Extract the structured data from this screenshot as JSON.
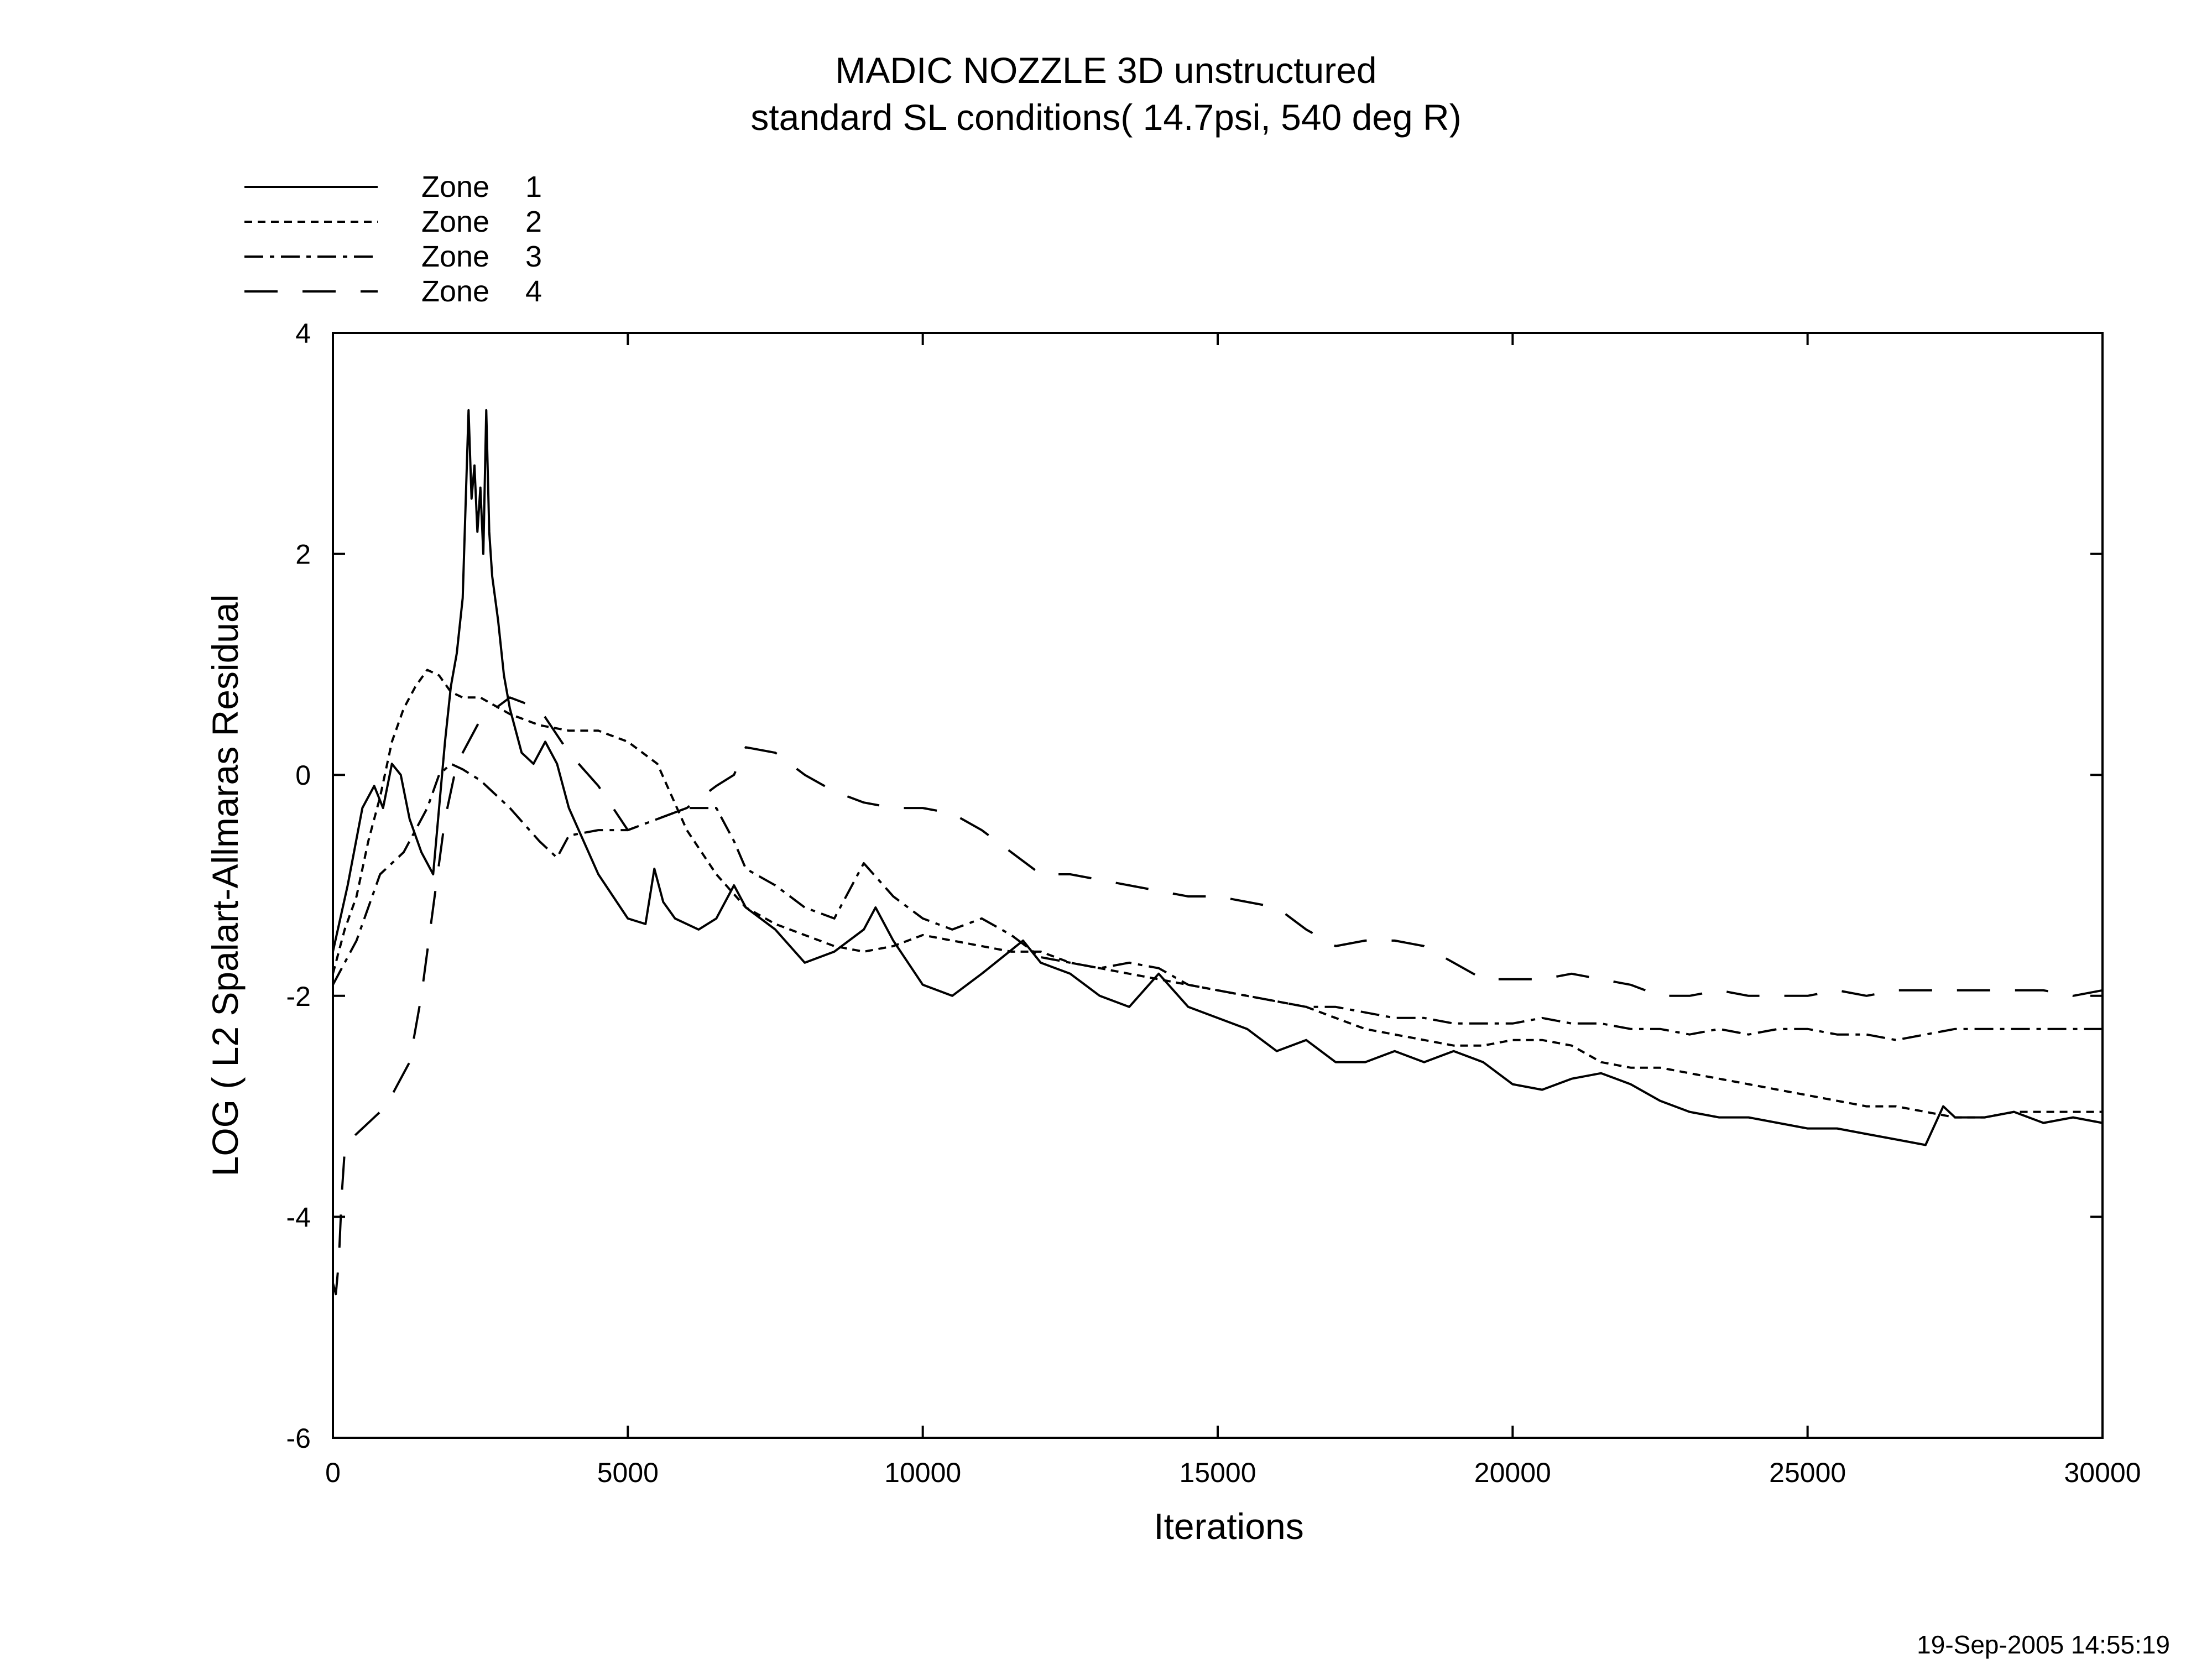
{
  "chart_data": {
    "type": "line",
    "title": "MADIC NOZZLE 3D unstructured",
    "subtitle": "standard SL conditions( 14.7psi, 540 deg R)",
    "xlabel": "Iterations",
    "ylabel": "LOG ( L2 Spalart-Allmaras Residual",
    "xlim": [
      0,
      30000
    ],
    "ylim": [
      -6,
      4
    ],
    "xticks": [
      0,
      5000,
      10000,
      15000,
      20000,
      25000,
      30000
    ],
    "yticks": [
      4,
      2,
      0,
      -2,
      -4,
      -6
    ],
    "x_tick_labels": [
      "0",
      "5000",
      "10000",
      "15000",
      "20000",
      "25000",
      "30000"
    ],
    "y_tick_labels": [
      "4",
      "2",
      "0",
      "-2",
      "-4",
      "-6"
    ],
    "grid": false,
    "legend_position": "top-left",
    "timestamp": "19-Sep-2005 14:55:19",
    "series": [
      {
        "name": "Zone",
        "number": "1",
        "dash": "solid",
        "x": [
          0,
          250,
          500,
          700,
          850,
          1000,
          1150,
          1300,
          1500,
          1700,
          1800,
          1900,
          2000,
          2100,
          2200,
          2300,
          2350,
          2400,
          2450,
          2500,
          2550,
          2600,
          2650,
          2700,
          2800,
          2900,
          3000,
          3200,
          3400,
          3600,
          3800,
          4000,
          4500,
          5000,
          5300,
          5450,
          5600,
          5800,
          6200,
          6500,
          6800,
          7000,
          7500,
          8000,
          8500,
          9000,
          9200,
          9500,
          10000,
          10500,
          11000,
          11700,
          12000,
          12500,
          13000,
          13500,
          14000,
          14500,
          15000,
          15500,
          16000,
          16500,
          17000,
          17500,
          18000,
          18500,
          19000,
          19500,
          20000,
          20500,
          21000,
          21500,
          22000,
          22500,
          23000,
          23500,
          24000,
          24500,
          25000,
          25500,
          26000,
          26500,
          27000,
          27300,
          27500,
          28000,
          28500,
          29000,
          29500,
          30000
        ],
        "y": [
          -1.6,
          -1.0,
          -0.3,
          -0.1,
          -0.3,
          0.1,
          0.0,
          -0.4,
          -0.7,
          -0.9,
          -0.3,
          0.3,
          0.8,
          1.1,
          1.6,
          3.3,
          2.5,
          2.8,
          2.2,
          2.6,
          2.0,
          3.3,
          2.2,
          1.8,
          1.4,
          0.9,
          0.6,
          0.2,
          0.1,
          0.3,
          0.1,
          -0.3,
          -0.9,
          -1.3,
          -1.35,
          -0.85,
          -1.15,
          -1.3,
          -1.4,
          -1.3,
          -1.0,
          -1.2,
          -1.4,
          -1.7,
          -1.6,
          -1.4,
          -1.2,
          -1.5,
          -1.9,
          -2.0,
          -1.8,
          -1.5,
          -1.7,
          -1.8,
          -2.0,
          -2.1,
          -1.8,
          -2.1,
          -2.2,
          -2.3,
          -2.5,
          -2.4,
          -2.6,
          -2.6,
          -2.5,
          -2.6,
          -2.5,
          -2.6,
          -2.8,
          -2.85,
          -2.75,
          -2.7,
          -2.8,
          -2.95,
          -3.05,
          -3.1,
          -3.1,
          -3.15,
          -3.2,
          -3.2,
          -3.25,
          -3.3,
          -3.35,
          -3.0,
          -3.1,
          -3.1,
          -3.05,
          -3.15,
          -3.1,
          -3.15
        ]
      },
      {
        "name": "Zone",
        "number": "2",
        "dash": "dotted",
        "x": [
          0,
          200,
          400,
          600,
          800,
          1000,
          1200,
          1400,
          1600,
          1800,
          2000,
          2200,
          2500,
          3000,
          3500,
          4000,
          4500,
          5000,
          5500,
          6000,
          6500,
          7000,
          7500,
          8000,
          8500,
          9000,
          9500,
          10000,
          10500,
          11000,
          11500,
          12000,
          12500,
          13000,
          13500,
          14000,
          14500,
          15000,
          15500,
          16000,
          16500,
          17000,
          17500,
          18000,
          18500,
          19000,
          19500,
          20000,
          20500,
          21000,
          21500,
          22000,
          22500,
          23000,
          23500,
          24000,
          24500,
          25000,
          25500,
          26000,
          26500,
          27000,
          27500,
          28000,
          28500,
          29000,
          29500,
          30000
        ],
        "y": [
          -1.8,
          -1.4,
          -1.1,
          -0.6,
          -0.2,
          0.3,
          0.6,
          0.8,
          0.95,
          0.9,
          0.75,
          0.7,
          0.7,
          0.55,
          0.45,
          0.4,
          0.4,
          0.3,
          0.1,
          -0.5,
          -0.9,
          -1.2,
          -1.35,
          -1.45,
          -1.55,
          -1.6,
          -1.55,
          -1.45,
          -1.5,
          -1.55,
          -1.6,
          -1.6,
          -1.7,
          -1.75,
          -1.8,
          -1.85,
          -1.9,
          -1.95,
          -2.0,
          -2.05,
          -2.1,
          -2.2,
          -2.3,
          -2.35,
          -2.4,
          -2.45,
          -2.45,
          -2.4,
          -2.4,
          -2.45,
          -2.6,
          -2.65,
          -2.65,
          -2.7,
          -2.75,
          -2.8,
          -2.85,
          -2.9,
          -2.95,
          -3.0,
          -3.0,
          -3.05,
          -3.1,
          -3.1,
          -3.05,
          -3.05,
          -3.05,
          -3.05
        ]
      },
      {
        "name": "Zone",
        "number": "3",
        "dash": "dash-dot",
        "x": [
          0,
          200,
          400,
          600,
          800,
          1000,
          1200,
          1400,
          1600,
          1800,
          2000,
          2200,
          2500,
          3000,
          3500,
          3800,
          4000,
          4500,
          5000,
          5500,
          6000,
          6500,
          6800,
          7000,
          7500,
          8000,
          8500,
          9000,
          9500,
          10000,
          10500,
          11000,
          11500,
          12000,
          12500,
          13000,
          13500,
          14000,
          14500,
          15000,
          15500,
          16000,
          16500,
          17000,
          17500,
          18000,
          18500,
          19000,
          19500,
          20000,
          20500,
          21000,
          21500,
          22000,
          22500,
          23000,
          23500,
          24000,
          24500,
          25000,
          25500,
          26000,
          26500,
          27000,
          27500,
          28000,
          28500,
          29000,
          29500,
          30000
        ],
        "y": [
          -1.9,
          -1.7,
          -1.5,
          -1.2,
          -0.9,
          -0.8,
          -0.7,
          -0.5,
          -0.3,
          0.0,
          0.1,
          0.05,
          -0.05,
          -0.3,
          -0.6,
          -0.75,
          -0.55,
          -0.5,
          -0.5,
          -0.4,
          -0.3,
          -0.3,
          -0.6,
          -0.85,
          -1.0,
          -1.2,
          -1.3,
          -0.8,
          -1.1,
          -1.3,
          -1.4,
          -1.3,
          -1.45,
          -1.65,
          -1.7,
          -1.75,
          -1.7,
          -1.75,
          -1.9,
          -1.95,
          -2.0,
          -2.05,
          -2.1,
          -2.1,
          -2.15,
          -2.2,
          -2.2,
          -2.25,
          -2.25,
          -2.25,
          -2.2,
          -2.25,
          -2.25,
          -2.3,
          -2.3,
          -2.35,
          -2.3,
          -2.35,
          -2.3,
          -2.3,
          -2.35,
          -2.35,
          -2.4,
          -2.35,
          -2.3,
          -2.3,
          -2.3,
          -2.3,
          -2.3,
          -2.3
        ]
      },
      {
        "name": "Zone",
        "number": "4",
        "dash": "long-dash",
        "x": [
          0,
          50,
          100,
          150,
          200,
          300,
          500,
          700,
          900,
          1100,
          1300,
          1500,
          1700,
          1900,
          2100,
          2500,
          3000,
          3500,
          4000,
          4500,
          5000,
          5500,
          6000,
          6500,
          6800,
          7000,
          7500,
          8000,
          8500,
          9000,
          9500,
          10000,
          10500,
          11000,
          11500,
          12000,
          12500,
          13000,
          13500,
          14000,
          14500,
          15000,
          15500,
          16000,
          16500,
          17000,
          17500,
          18000,
          18500,
          19000,
          19500,
          20000,
          20500,
          21000,
          21500,
          22000,
          22500,
          23000,
          23500,
          24000,
          24500,
          25000,
          25500,
          26000,
          26500,
          27000,
          27500,
          28000,
          28500,
          29000,
          29500,
          30000
        ],
        "y": [
          -4.6,
          -4.7,
          -4.4,
          -3.8,
          -3.4,
          -3.3,
          -3.2,
          -3.1,
          -3.0,
          -2.8,
          -2.6,
          -2.0,
          -1.2,
          -0.4,
          0.1,
          0.5,
          0.7,
          0.6,
          0.2,
          -0.1,
          -0.5,
          -0.4,
          -0.3,
          -0.1,
          0.0,
          0.25,
          0.2,
          0.0,
          -0.15,
          -0.25,
          -0.3,
          -0.3,
          -0.35,
          -0.5,
          -0.7,
          -0.9,
          -0.9,
          -0.95,
          -1.0,
          -1.05,
          -1.1,
          -1.1,
          -1.15,
          -1.2,
          -1.4,
          -1.55,
          -1.5,
          -1.5,
          -1.55,
          -1.7,
          -1.85,
          -1.85,
          -1.85,
          -1.8,
          -1.85,
          -1.9,
          -2.0,
          -2.0,
          -1.95,
          -2.0,
          -2.0,
          -2.0,
          -1.95,
          -2.0,
          -1.95,
          -1.95,
          -1.95,
          -1.95,
          -1.95,
          -1.95,
          -2.0,
          -1.95
        ]
      }
    ]
  }
}
